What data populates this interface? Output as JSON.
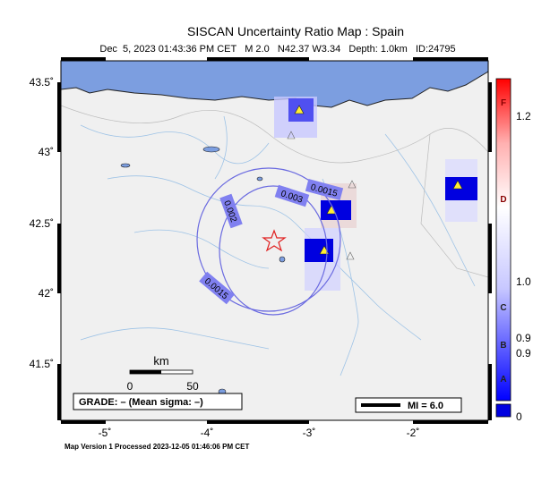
{
  "header": {
    "title": "SISCAN Uncertainty Ratio Map : Spain",
    "subtitle": "Dec  5, 2023 01:43:36 PM CET   M 2.0   N42.37 W3.34   Depth: 1.0km   ID:24795"
  },
  "axes": {
    "latitude_labels": [
      "43.5˚",
      "43˚",
      "42.5˚",
      "42˚",
      "41.5˚"
    ],
    "longitude_labels": [
      "-5˚",
      "-4˚",
      "-3˚",
      "-2˚"
    ]
  },
  "contour_labels": [
    "0.0015",
    "0.003",
    "0.002",
    "0.0015"
  ],
  "scale": {
    "title": "km",
    "start": "0",
    "end": "50"
  },
  "grade": "GRADE: – (Mean sigma: –)",
  "mi": "MI = 6.0",
  "colorbar": {
    "letters": [
      "F",
      "D",
      "C",
      "B",
      "A"
    ],
    "values": [
      "1.2",
      "1.0",
      "0.9",
      "0.9",
      "0"
    ]
  },
  "footer": "Map Version 1 Processed 2023-12-05 01:46:06 PM CET"
}
